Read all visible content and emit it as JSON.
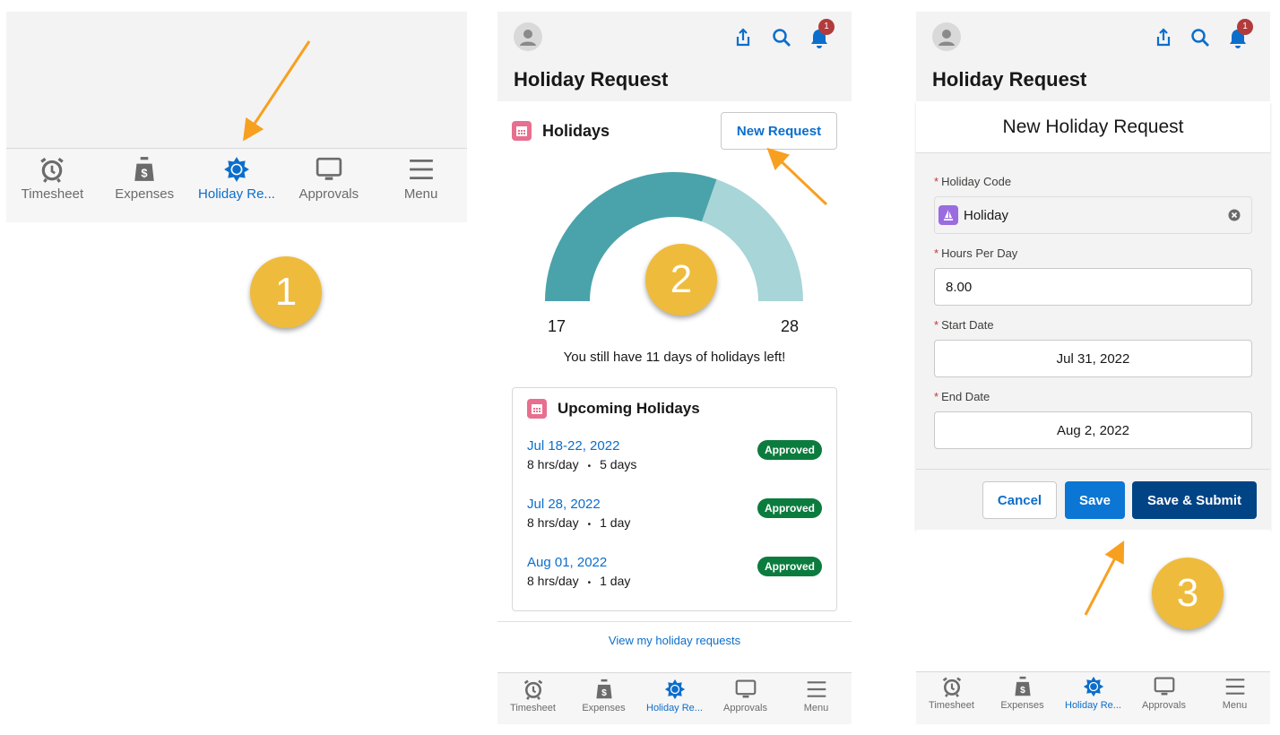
{
  "nav_items": [
    {
      "label": "Timesheet",
      "icon": "alarm-clock-icon"
    },
    {
      "label": "Expenses",
      "icon": "money-bag-icon"
    },
    {
      "label": "Holiday Re...",
      "icon": "sun-icon",
      "active": true
    },
    {
      "label": "Approvals",
      "icon": "monitor-icon"
    },
    {
      "label": "Menu",
      "icon": "hamburger-menu-icon"
    }
  ],
  "header": {
    "title": "Holiday Request",
    "notification_count": "1"
  },
  "holidays": {
    "title": "Holidays",
    "new_request_label": "New Request",
    "gauge": {
      "used": 17,
      "total": 28,
      "min_label": "17",
      "max_label": "28",
      "used_color": "#4aa3ab",
      "remaining_color": "#a8d5d7"
    },
    "summary": "You still have 11 days of holidays left!"
  },
  "upcoming": {
    "title": "Upcoming Holidays",
    "items": [
      {
        "date": "Jul 18-22, 2022",
        "hours": "8 hrs/day",
        "days": "5 days",
        "status": "Approved"
      },
      {
        "date": "Jul 28, 2022",
        "hours": "8 hrs/day",
        "days": "1 day",
        "status": "Approved"
      },
      {
        "date": "Aug 01, 2022",
        "hours": "8 hrs/day",
        "days": "1 day",
        "status": "Approved"
      }
    ],
    "separator": "•"
  },
  "view_link": "View my holiday requests",
  "form": {
    "title": "New Holiday Request",
    "required_mark": "*",
    "holiday_code_label": "Holiday Code",
    "holiday_code_value": "Holiday",
    "hours_label": "Hours Per Day",
    "hours_value": "8.00",
    "start_label": "Start Date",
    "start_value": "Jul 31, 2022",
    "end_label": "End Date",
    "end_value": "Aug 2, 2022",
    "cancel": "Cancel",
    "save": "Save",
    "save_submit": "Save & Submit"
  },
  "steps": [
    "1",
    "2",
    "3"
  ],
  "colors": {
    "brand_blue": "#0b6ecc",
    "dark_blue": "#014486",
    "approved_green": "#0b7c3e",
    "step_yellow": "#efbb3d",
    "arrow_orange": "#f7a020"
  }
}
